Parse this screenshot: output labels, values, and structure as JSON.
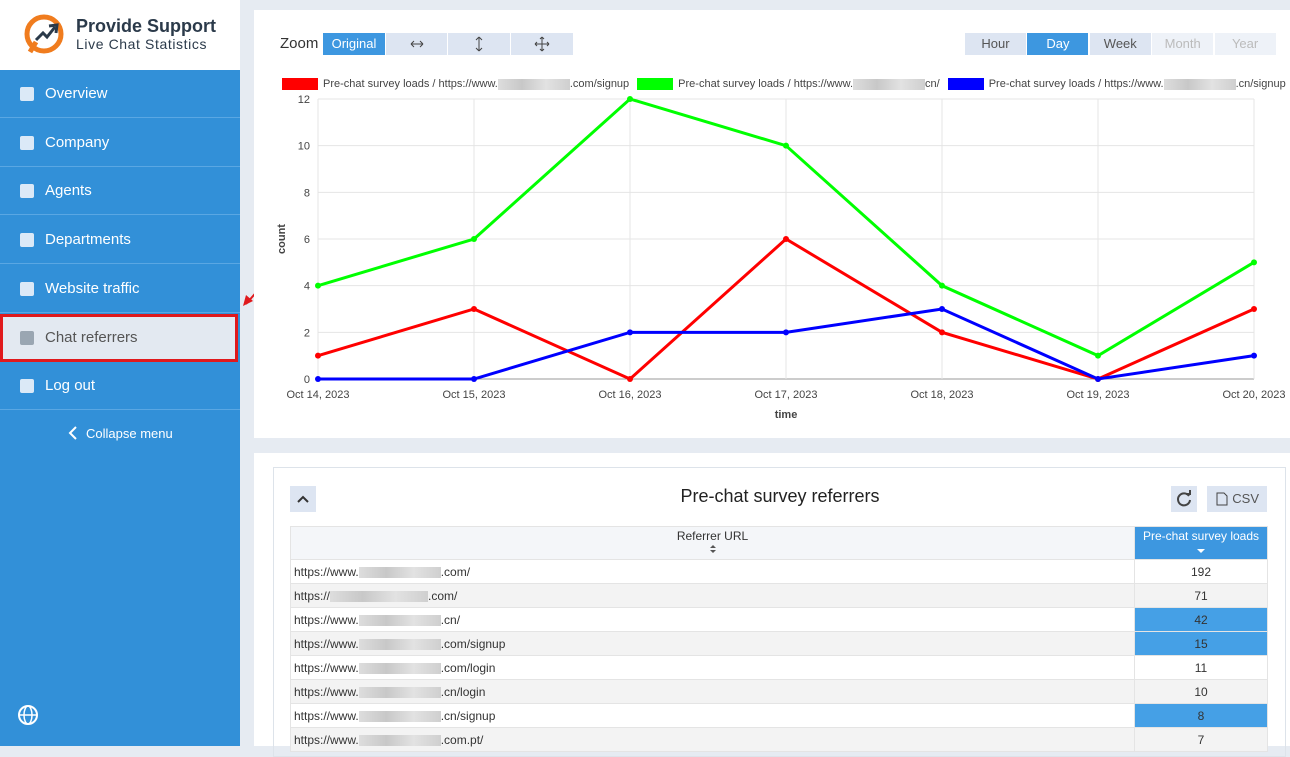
{
  "sidebar": {
    "brand": "Provide Support",
    "subtitle": "Live Chat Statistics",
    "menu": [
      "Overview",
      "Company",
      "Agents",
      "Departments",
      "Website traffic",
      "Chat referrers",
      "Log out"
    ],
    "active": "Chat referrers",
    "collapse": "Collapse menu"
  },
  "toolbar": {
    "zoom_label": "Zoom",
    "zoom_mode": "Original",
    "periods": [
      "Hour",
      "Day",
      "Week",
      "Month",
      "Year"
    ],
    "active_period": "Day",
    "disabled_periods": [
      "Month",
      "Year"
    ]
  },
  "chart_data": {
    "type": "line",
    "x": [
      "Oct 14, 2023",
      "Oct 15, 2023",
      "Oct 16, 2023",
      "Oct 17, 2023",
      "Oct 18, 2023",
      "Oct 19, 2023",
      "Oct 20, 2023"
    ],
    "series": [
      {
        "name": "Pre-chat survey loads / https://www.",
        "name_suffix": ".com/signup",
        "color": "#ff0000",
        "values": [
          1,
          3,
          0,
          6,
          2,
          0,
          3
        ]
      },
      {
        "name": "Pre-chat survey loads / https://www.",
        "name_suffix": "cn/",
        "color": "#00ff00",
        "values": [
          4,
          6,
          12,
          10,
          4,
          1,
          5
        ]
      },
      {
        "name": "Pre-chat survey loads / https://www.",
        "name_suffix": ".cn/signup",
        "color": "#0000ff",
        "values": [
          0,
          0,
          2,
          2,
          3,
          0,
          1
        ]
      }
    ],
    "ylim": [
      0,
      12
    ],
    "yticks": [
      0,
      2,
      4,
      6,
      8,
      10,
      12
    ],
    "y_label": "count",
    "x_label": "time",
    "grid": true
  },
  "table": {
    "title": "Pre-chat survey referrers",
    "csv": "CSV",
    "columns": [
      "Referrer URL",
      "Pre-chat survey loads"
    ],
    "rows": [
      {
        "prefix": "https://www.",
        "suffix": ".com/",
        "loads": 192,
        "highlighted": false
      },
      {
        "prefix": "https://",
        "suffix": ".com/",
        "loads": 71,
        "highlighted": false
      },
      {
        "prefix": "https://www.",
        "suffix": ".cn/",
        "loads": 42,
        "highlighted": true
      },
      {
        "prefix": "https://www.",
        "suffix": ".com/signup",
        "loads": 15,
        "highlighted": true
      },
      {
        "prefix": "https://www.",
        "suffix": ".com/login",
        "loads": 11,
        "highlighted": false
      },
      {
        "prefix": "https://www.",
        "suffix": ".cn/login",
        "loads": 10,
        "highlighted": false
      },
      {
        "prefix": "https://www.",
        "suffix": ".cn/signup",
        "loads": 8,
        "highlighted": true
      },
      {
        "prefix": "https://www.",
        "suffix": ".com.pt/",
        "loads": 7,
        "highlighted": false
      }
    ]
  }
}
